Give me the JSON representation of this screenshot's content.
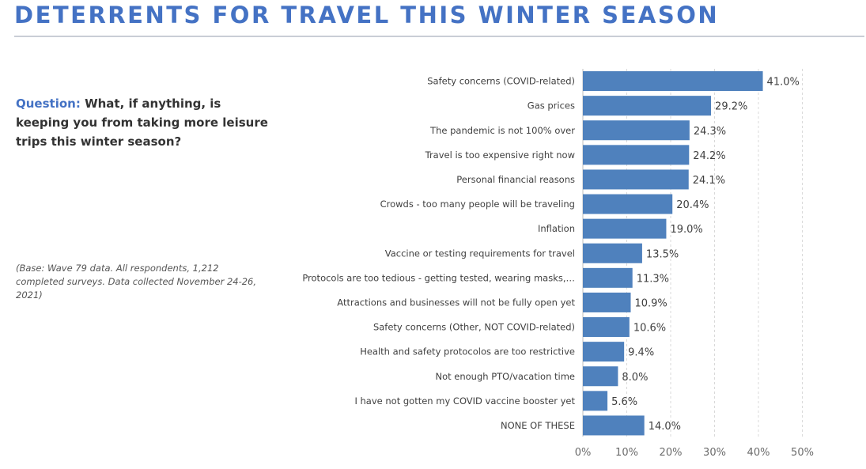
{
  "title": "DETERRENTS FOR TRAVEL THIS WINTER SEASON",
  "question": {
    "label": "Question:",
    "text": "What, if anything, is keeping you from taking more leisure trips this winter season?"
  },
  "base_note": "(Base: Wave 79 data. All respondents, 1,212 completed surveys. Data collected November 24-26, 2021)",
  "colors": {
    "bar": "#4f81bd",
    "title": "#4472c4"
  },
  "chart_data": {
    "type": "bar",
    "orientation": "horizontal",
    "title": "",
    "xlabel": "",
    "ylabel": "",
    "xlim": [
      0,
      50
    ],
    "ticks": [
      0,
      10,
      20,
      30,
      40,
      50
    ],
    "tick_labels": [
      "0%",
      "10%",
      "20%",
      "30%",
      "40%",
      "50%"
    ],
    "grid": true,
    "categories": [
      "Safety concerns (COVID-related)",
      "Gas prices",
      "The pandemic is not 100% over",
      "Travel is too expensive right now",
      "Personal financial reasons",
      "Crowds - too many people will be traveling",
      "Inflation",
      "Vaccine or testing requirements for travel",
      "Protocols are too tedious - getting tested, wearing masks,…",
      "Attractions and businesses will not be fully open yet",
      "Safety concerns (Other, NOT COVID-related)",
      "Health and safety protocolos are too restrictive",
      "Not enough PTO/vacation time",
      "I have not gotten my COVID vaccine booster yet",
      "NONE OF THESE"
    ],
    "values": [
      41.0,
      29.2,
      24.3,
      24.2,
      24.1,
      20.4,
      19.0,
      13.5,
      11.3,
      10.9,
      10.6,
      9.4,
      8.0,
      5.6,
      14.0
    ],
    "value_labels": [
      "41.0%",
      "29.2%",
      "24.3%",
      "24.2%",
      "24.1%",
      "20.4%",
      "19.0%",
      "13.5%",
      "11.3%",
      "10.9%",
      "10.6%",
      "9.4%",
      "8.0%",
      "5.6%",
      "14.0%"
    ]
  }
}
